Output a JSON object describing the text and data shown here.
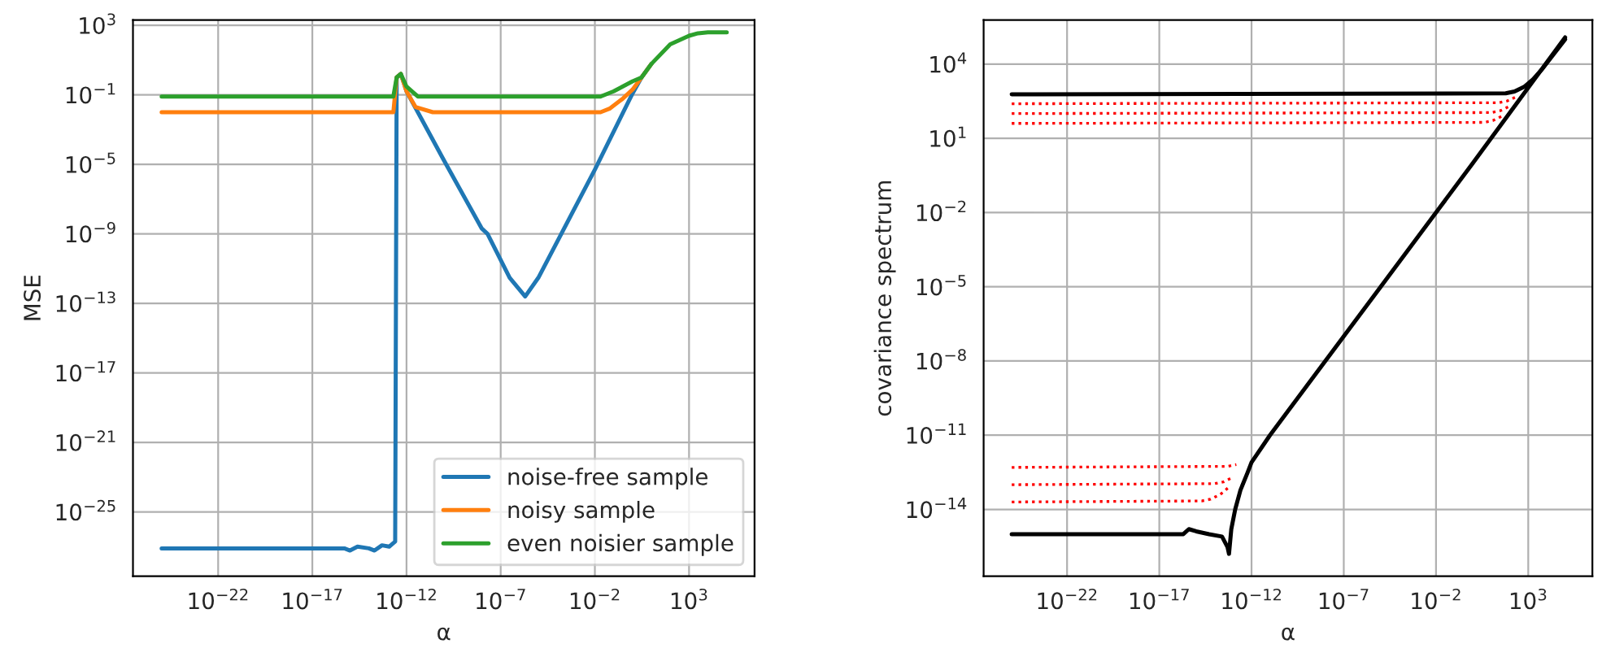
{
  "chart_data": [
    {
      "type": "line",
      "xlabel": "α",
      "ylabel": "MSE",
      "log": "xy",
      "grid": true,
      "legend": "bottom right",
      "xlim": [
        3e-27,
        3000000.0
      ],
      "ylim": [
        2e-29,
        2000.0
      ],
      "xticks": [
        {
          "value": 1e-22,
          "label": "10$^{−22}$"
        },
        {
          "value": 1e-17,
          "label": "10$^{−17}$"
        },
        {
          "value": 1e-12,
          "label": "10$^{−12}$"
        },
        {
          "value": 1e-07,
          "label": "10$^{−7}$"
        },
        {
          "value": 0.01,
          "label": "10$^{−2}$"
        },
        {
          "value": 1000,
          "label": "10$^{3}$"
        }
      ],
      "yticks": [
        {
          "value": 1e-25,
          "label": "10$^{−25}$"
        },
        {
          "value": 1e-21,
          "label": "10$^{−21}$"
        },
        {
          "value": 1e-17,
          "label": "10$^{−17}$"
        },
        {
          "value": 1e-13,
          "label": "10$^{−13}$"
        },
        {
          "value": 1e-09,
          "label": "10$^{−9}$"
        },
        {
          "value": 1e-05,
          "label": "10$^{−5}$"
        },
        {
          "value": 0.1,
          "label": "10$^{−1}$"
        },
        {
          "value": 1000,
          "label": "10$^{3}$"
        }
      ],
      "series": [
        {
          "name": "noise-free sample",
          "color": "#1f77b4",
          "x": [
            1e-25,
            5e-16,
            1e-15,
            2.5e-15,
            1e-14,
            2e-14,
            5e-14,
            1.2e-13,
            2e-13,
            2.5e-13,
            3e-13,
            5e-13,
            1e-12,
            4e-12,
            1e-10,
            1e-08,
            2e-08,
            3e-07,
            2e-06,
            1e-05,
            0.01,
            1,
            3,
            10
          ],
          "values": [
            8e-28,
            8e-28,
            6e-28,
            1e-27,
            8e-28,
            6e-28,
            1.2e-27,
            1e-27,
            1.6e-27,
            2e-27,
            1,
            1.6,
            0.16,
            0.01,
            1.6e-05,
            2e-09,
            1e-09,
            3e-12,
            2.5e-13,
            3e-12,
            5e-06,
            0.12,
            1,
            6
          ]
        },
        {
          "name": "noisy sample",
          "color": "#ff7f0e",
          "x": [
            1e-25,
            2e-13,
            3e-13,
            5e-13,
            1e-12,
            3e-12,
            2.5e-11,
            0.02,
            0.06,
            0.3,
            1,
            3,
            10
          ],
          "values": [
            0.01,
            0.01,
            1,
            1.6,
            0.16,
            0.02,
            0.01,
            0.01,
            0.016,
            0.06,
            0.2,
            1,
            6
          ]
        },
        {
          "name": "even noisier sample",
          "color": "#2ca02c",
          "x": [
            1e-25,
            2e-13,
            3e-13,
            5e-13,
            1e-12,
            4e-12,
            0.02,
            0.1,
            1,
            3,
            10,
            100,
            1000,
            3000,
            10000,
            100000
          ],
          "values": [
            0.08,
            0.08,
            1,
            1.6,
            0.3,
            0.08,
            0.08,
            0.16,
            0.6,
            1,
            6,
            80,
            250,
            350,
            400,
            400
          ]
        }
      ]
    },
    {
      "type": "line",
      "xlabel": "α",
      "ylabel": "covariance spectrum",
      "log": "xy",
      "grid": true,
      "xlim": [
        3e-27,
        3000000.0
      ],
      "ylim": [
        2e-17,
        600000.0
      ],
      "xticks": [
        {
          "value": 1e-22,
          "label": "10$^{−22}$"
        },
        {
          "value": 1e-17,
          "label": "10$^{−17}$"
        },
        {
          "value": 1e-12,
          "label": "10$^{−12}$"
        },
        {
          "value": 1e-07,
          "label": "10$^{−7}$"
        },
        {
          "value": 0.01,
          "label": "10$^{−2}$"
        },
        {
          "value": 1000,
          "label": "10$^{3}$"
        }
      ],
      "yticks": [
        {
          "value": 1e-14,
          "label": "10$^{−14}$"
        },
        {
          "value": 1e-11,
          "label": "10$^{−11}$"
        },
        {
          "value": 1e-08,
          "label": "10$^{−8}$"
        },
        {
          "value": 1e-05,
          "label": "10$^{−5}$"
        },
        {
          "value": 0.01,
          "label": "10$^{−2}$"
        },
        {
          "value": 10,
          "label": "10$^{1}$"
        },
        {
          "value": 10000,
          "label": "10$^{4}$"
        }
      ],
      "series": [
        {
          "color": "#ff0000",
          "line_style": "dotted",
          "x": [
            1e-25,
            4,
            12,
            40
          ],
          "values": [
            40,
            44,
            52,
            80
          ]
        },
        {
          "color": "#ff0000",
          "line_style": "dotted",
          "x": [
            1e-25,
            10,
            30,
            100
          ],
          "values": [
            100,
            110,
            130,
            200
          ]
        },
        {
          "color": "#ff0000",
          "line_style": "dotted",
          "x": [
            1e-25,
            25,
            75,
            250
          ],
          "values": [
            250,
            275,
            325,
            500
          ]
        },
        {
          "color": "#ff0000",
          "line_style": "dotted",
          "x": [
            1e-25,
            5e-14,
            1.5e-13
          ],
          "values": [
            5e-13,
            5.5e-13,
            6.5e-13
          ]
        },
        {
          "color": "#ff0000",
          "line_style": "dotted",
          "x": [
            1e-25,
            1e-14,
            3e-14,
            1e-13
          ],
          "values": [
            1e-13,
            1.1e-13,
            1.3e-13,
            2e-13
          ]
        },
        {
          "color": "#ff0000",
          "line_style": "dotted",
          "x": [
            1e-25,
            2e-15,
            6e-15,
            2e-14,
            6e-14
          ],
          "values": [
            2e-14,
            2.2e-14,
            2.6e-14,
            4e-14,
            8e-14
          ]
        },
        {
          "color": "#000000",
          "line_style": "solid",
          "x": [
            1e-25,
            60,
            180,
            600,
            1800,
            6000,
            100000
          ],
          "values": [
            600,
            660,
            780,
            1200,
            2400,
            6600,
            100000
          ]
        },
        {
          "color": "#000000",
          "line_style": "solid",
          "x": [
            1e-25,
            2e-16,
            4e-16,
            1e-15,
            5e-15,
            2.5e-14,
            5e-14,
            6e-14,
            8e-14,
            1.3e-13,
            2.5e-13,
            6e-13,
            1e-12,
            1e-11,
            1e-05,
            1,
            100000
          ],
          "values": [
            1e-15,
            1e-15,
            1.6e-15,
            1.3e-15,
            1e-15,
            8e-16,
            3e-16,
            1.6e-16,
            1.6e-15,
            1e-14,
            6e-14,
            3e-13,
            8e-13,
            1e-11,
            1e-05,
            1,
            120000
          ]
        }
      ]
    }
  ]
}
